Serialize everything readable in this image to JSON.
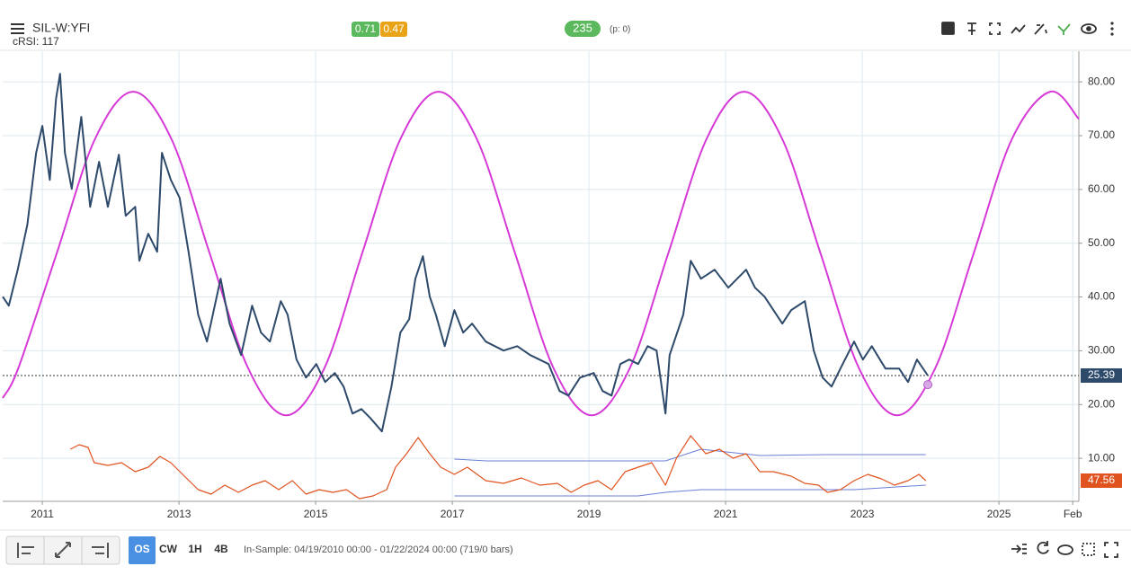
{
  "header": {
    "symbol": "SIL-W:YFI",
    "indicator": "cRSI: 117",
    "badges": [
      "0.71",
      "0.47"
    ],
    "count": "235",
    "p": "(p: 0)"
  },
  "footer": {
    "timeframes": [
      "OS",
      "CW",
      "1H",
      "4B"
    ],
    "info": "In-Sample: 04/19/2010 00:00 - 01/22/2024 00:00 (719/0 bars)"
  },
  "chart_data": {
    "type": "line",
    "xlim": [
      2010.42,
      2026.17
    ],
    "xticks": [
      2011,
      2013,
      2015,
      2017,
      2019,
      2021,
      2023,
      2025,
      {
        "value": 2026.08,
        "label": "Feb"
      }
    ],
    "ylim": [
      2,
      85.7
    ],
    "yticks": [
      {
        "value": 10,
        "label": "10.00"
      },
      {
        "value": 20,
        "label": "20.00"
      },
      {
        "value": 30,
        "label": "30.00"
      },
      {
        "value": 40,
        "label": "40.00"
      },
      {
        "value": 50,
        "label": "50.00"
      },
      {
        "value": 60,
        "label": "60.00"
      },
      {
        "value": 70,
        "label": "70.00"
      },
      {
        "value": 80,
        "label": "80.00"
      }
    ],
    "y2lim": [
      22.4,
      570
    ],
    "grid": true,
    "series": [
      {
        "color": "#2e4a6b",
        "width": 2,
        "x": [
          2010.42,
          2010.51,
          2010.64,
          2010.78,
          2010.91,
          2011.0,
          2011.11,
          2011.2,
          2011.26,
          2011.33,
          2011.43,
          2011.57,
          2011.7,
          2011.83,
          2011.96,
          2012.12,
          2012.22,
          2012.36,
          2012.42,
          2012.55,
          2012.68,
          2012.75,
          2012.88,
          2013.01,
          2013.14,
          2013.28,
          2013.41,
          2013.61,
          2013.74,
          2013.91,
          2014.07,
          2014.2,
          2014.33,
          2014.49,
          2014.59,
          2014.72,
          2014.86,
          2015.01,
          2015.14,
          2015.28,
          2015.41,
          2015.54,
          2015.67,
          2015.8,
          2015.97,
          2016.11,
          2016.24,
          2016.37,
          2016.46,
          2016.57,
          2016.67,
          2016.76,
          2016.89,
          2017.03,
          2017.16,
          2017.29,
          2017.49,
          2017.75,
          2017.95,
          2018.14,
          2018.41,
          2018.57,
          2018.7,
          2018.87,
          2019.07,
          2019.2,
          2019.33,
          2019.46,
          2019.59,
          2019.72,
          2019.86,
          2019.99,
          2020.12,
          2020.18,
          2020.38,
          2020.49,
          2020.64,
          2020.84,
          2021.04,
          2021.3,
          2021.43,
          2021.57,
          2021.7,
          2021.83,
          2021.96,
          2022.16,
          2022.29,
          2022.42,
          2022.55,
          2022.68,
          2022.88,
          2023.01,
          2023.14,
          2023.34,
          2023.54,
          2023.67,
          2023.8,
          2023.96
        ],
        "values": [
          40.06,
          38.39,
          45.07,
          53.43,
          66.8,
          71.81,
          61.78,
          76.83,
          81.51,
          66.8,
          60.11,
          73.48,
          56.77,
          65.13,
          56.77,
          66.46,
          55.1,
          56.77,
          46.74,
          51.76,
          48.41,
          66.8,
          61.78,
          58.44,
          48.41,
          36.71,
          31.7,
          43.4,
          35.04,
          29.19,
          38.39,
          33.37,
          31.7,
          39.22,
          36.71,
          28.36,
          25.01,
          27.52,
          24.18,
          25.85,
          23.34,
          18.33,
          19.16,
          17.49,
          14.99,
          23.34,
          33.37,
          35.88,
          43.4,
          47.58,
          40.06,
          36.71,
          30.86,
          37.55,
          33.37,
          35.04,
          31.7,
          30.03,
          30.86,
          29.19,
          27.52,
          22.51,
          21.67,
          25.01,
          25.85,
          22.51,
          21.67,
          27.52,
          28.36,
          27.52,
          30.86,
          30.03,
          18.33,
          29.19,
          36.71,
          46.74,
          43.4,
          45.07,
          41.73,
          45.07,
          41.73,
          40.06,
          37.55,
          35.04,
          37.55,
          39.22,
          30.03,
          25.01,
          23.34,
          26.69,
          31.7,
          28.36,
          30.86,
          26.69,
          26.69,
          24.18,
          28.36,
          25.39
        ]
      },
      {
        "color": "#d63ad6",
        "width": 2,
        "x": [
          2010.42,
          2010.65,
          2011.21,
          2011.77,
          2012.33,
          2012.89,
          2013.45,
          2014.01,
          2014.57,
          2015.13,
          2015.68,
          2016.24,
          2016.8,
          2017.36,
          2017.92,
          2018.48,
          2019.04,
          2019.6,
          2020.16,
          2020.72,
          2021.27,
          2021.83,
          2022.39,
          2022.95,
          2023.51,
          2024.07,
          2024.63,
          2025.19,
          2025.75,
          2026.17
        ],
        "values": [
          21.2,
          26.81,
          48.08,
          69.35,
          78.16,
          69.35,
          48.08,
          26.81,
          18,
          26.81,
          48.08,
          69.35,
          78.16,
          69.35,
          48.08,
          26.81,
          18,
          26.81,
          48.08,
          69.35,
          78.16,
          69.35,
          48.08,
          26.81,
          18,
          26.81,
          48.08,
          69.35,
          78.16,
          73.1
        ]
      },
      {
        "color": "#e0531f",
        "width": 1.2,
        "axis": "y2",
        "x": [
          2011.41,
          2011.54,
          2011.67,
          2011.76,
          2011.96,
          2012.16,
          2012.36,
          2012.55,
          2012.72,
          2012.88,
          2013.08,
          2013.28,
          2013.47,
          2013.67,
          2013.87,
          2014.07,
          2014.26,
          2014.46,
          2014.66,
          2014.86,
          2015.05,
          2015.25,
          2015.45,
          2015.64,
          2015.84,
          2016.04,
          2016.17,
          2016.33,
          2016.5,
          2016.67,
          2016.83,
          2017.03,
          2017.22,
          2017.49,
          2017.75,
          2018.01,
          2018.28,
          2018.54,
          2018.74,
          2018.93,
          2019.13,
          2019.33,
          2019.53,
          2019.72,
          2019.92,
          2020.12,
          2020.28,
          2020.49,
          2020.71,
          2020.91,
          2021.11,
          2021.3,
          2021.5,
          2021.7,
          2021.96,
          2022.16,
          2022.36,
          2022.49,
          2022.68,
          2022.88,
          2023.08,
          2023.28,
          2023.47,
          2023.67,
          2023.83,
          2023.93
        ],
        "values": [
          85.8,
          91.3,
          88.0,
          69.4,
          66.1,
          69.4,
          58.5,
          63.9,
          77.1,
          69.4,
          53.0,
          36.6,
          31.1,
          42.1,
          33.3,
          42.1,
          47.5,
          36.6,
          47.5,
          31.1,
          36.6,
          33.3,
          36.6,
          25.7,
          29.0,
          36.6,
          63.9,
          80.3,
          100.0,
          80.3,
          63.9,
          55.2,
          63.9,
          47.5,
          44.3,
          50.8,
          42.1,
          44.3,
          33.3,
          42.1,
          47.5,
          36.6,
          58.5,
          63.9,
          69.4,
          42.1,
          74.9,
          102.2,
          80.3,
          85.8,
          74.9,
          80.3,
          58.5,
          58.5,
          53.0,
          44.3,
          42.1,
          33.3,
          36.6,
          47.5,
          55.2,
          49.7,
          42.1,
          47.5,
          55.2,
          47.56
        ]
      },
      {
        "color": "#6b7fd7",
        "width": 1,
        "axis": "y2",
        "x": [
          2017.03,
          2017.5,
          2020.12,
          2020.64,
          2021.5,
          2022.5,
          2023.93
        ],
        "values": [
          73.8,
          71.6,
          71.6,
          85.8,
          78.1,
          79.2,
          79.2
        ]
      },
      {
        "color": "#6b7fd7",
        "width": 1,
        "axis": "y2",
        "x": [
          2017.03,
          2019.72,
          2020.12,
          2020.64,
          2022.88,
          2023.93
        ],
        "values": [
          29.0,
          29.0,
          33.3,
          36.6,
          36.6,
          42.1
        ]
      }
    ],
    "cursor_point": {
      "x": 2023.96,
      "y": 23.7
    }
  }
}
